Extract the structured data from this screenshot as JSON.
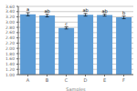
{
  "chart_data": {
    "type": "bar",
    "x_label": "Samples",
    "categories": [
      "A",
      "B",
      "C",
      "D",
      "E",
      "F"
    ],
    "values": [
      3.3,
      3.25,
      2.78,
      3.28,
      3.27,
      3.18
    ],
    "errors": [
      0.06,
      0.05,
      0.04,
      0.05,
      0.04,
      0.05
    ],
    "annotations": [
      "a",
      "ab",
      "c",
      "ab",
      "ab",
      "b"
    ],
    "color": "#5b9bd5",
    "ylim": [
      1.0,
      3.6
    ],
    "yticks": [
      {
        "value": 1,
        "label": "1.00"
      },
      {
        "value": 1.2,
        "label": "1.20"
      },
      {
        "value": 1.4,
        "label": "1.40"
      },
      {
        "value": 1.6,
        "label": "1.60"
      },
      {
        "value": 1.8,
        "label": "1.80"
      },
      {
        "value": 2,
        "label": "2.00"
      },
      {
        "value": 2.2,
        "label": "2.20"
      },
      {
        "value": 2.4,
        "label": "2.40"
      },
      {
        "value": 2.6,
        "label": "2.60"
      },
      {
        "value": 2.8,
        "label": "2.80"
      },
      {
        "value": 3,
        "label": "3.00"
      },
      {
        "value": 3.2,
        "label": "3.20"
      },
      {
        "value": 3.4,
        "label": "3.40"
      },
      {
        "value": 3.6,
        "label": "3.60"
      }
    ],
    "grid": true
  }
}
